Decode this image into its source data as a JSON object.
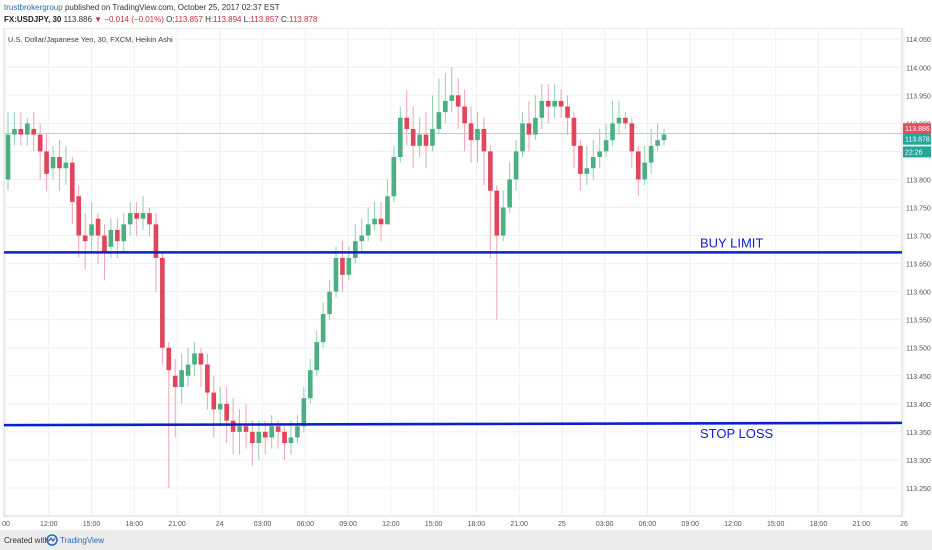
{
  "header": {
    "author": "trustbrokergroup",
    "published_text": "published on TradingView.com, October 25, 2017 02:37 EST",
    "symbol": "FX:USDJPY, 30",
    "last": "113.886",
    "change": "−0.014 (−0.01%)",
    "o_label": "O:",
    "o_value": "113.857",
    "h_label": "H:",
    "h_value": "113.894",
    "l_label": "L:",
    "l_value": "113.857",
    "c_label": "C:",
    "c_value": "113.878"
  },
  "chart_data": {
    "type": "candlestick",
    "title": "U.S. Dollar/Japanese Yen, 30, FXCM, Heikin Ashi",
    "ylim": [
      113.2,
      114.07
    ],
    "y_ticks": [
      "114.050",
      "114.000",
      "113.950",
      "113.900",
      "113.850",
      "113.800",
      "113.750",
      "113.700",
      "113.650",
      "113.600",
      "113.550",
      "113.500",
      "113.450",
      "113.400",
      "113.350",
      "113.300",
      "113.250"
    ],
    "x_ticks": [
      "00",
      "12:00",
      "15:00",
      "18:00",
      "21:00",
      "24",
      "03:00",
      "06:00",
      "09:00",
      "12:00",
      "15:00",
      "18:00",
      "21:00",
      "25",
      "03:00",
      "06:00",
      "09:00",
      "12:00",
      "15:00",
      "18:00",
      "21:00",
      "26"
    ],
    "price_labels": [
      {
        "value": 113.886,
        "text": "113.886",
        "color": "#e84a5f"
      },
      {
        "value": 113.878,
        "text": "113.878",
        "color": "#26a69a"
      },
      {
        "value": 113.866,
        "text": "22:26",
        "color": "#26a69a"
      }
    ],
    "current_price": 113.882,
    "horizontal_lines": [
      {
        "label": "BUY LIMIT",
        "start": 113.67,
        "end": 113.67,
        "color": "#0a1fcf"
      },
      {
        "label": "STOP LOSS",
        "start": 113.362,
        "end": 113.366,
        "color": "#0a1fcf"
      }
    ],
    "candles": [
      [
        113.8,
        113.88,
        113.92,
        113.78
      ],
      [
        113.88,
        113.89,
        113.92,
        113.86
      ],
      [
        113.89,
        113.88,
        113.92,
        113.86
      ],
      [
        113.88,
        113.9,
        113.91,
        113.86
      ],
      [
        113.89,
        113.88,
        113.92,
        113.85
      ],
      [
        113.88,
        113.85,
        113.9,
        113.8
      ],
      [
        113.85,
        113.81,
        113.88,
        113.78
      ],
      [
        113.82,
        113.84,
        113.86,
        113.8
      ],
      [
        113.84,
        113.82,
        113.87,
        113.78
      ],
      [
        113.82,
        113.83,
        113.86,
        113.79
      ],
      [
        113.83,
        113.76,
        113.84,
        113.72
      ],
      [
        113.77,
        113.7,
        113.79,
        113.66
      ],
      [
        113.7,
        113.69,
        113.74,
        113.64
      ],
      [
        113.7,
        113.72,
        113.76,
        113.67
      ],
      [
        113.73,
        113.7,
        113.74,
        113.65
      ],
      [
        113.7,
        113.67,
        113.72,
        113.62
      ],
      [
        113.68,
        113.71,
        113.73,
        113.66
      ],
      [
        113.71,
        113.69,
        113.73,
        113.66
      ],
      [
        113.69,
        113.72,
        113.74,
        113.67
      ],
      [
        113.72,
        113.74,
        113.76,
        113.7
      ],
      [
        113.74,
        113.73,
        113.76,
        113.7
      ],
      [
        113.73,
        113.74,
        113.77,
        113.71
      ],
      [
        113.74,
        113.72,
        113.75,
        113.7
      ],
      [
        113.72,
        113.66,
        113.74,
        113.6
      ],
      [
        113.66,
        113.5,
        113.67,
        113.47
      ],
      [
        113.5,
        113.46,
        113.51,
        113.25
      ],
      [
        113.45,
        113.43,
        113.48,
        113.34
      ],
      [
        113.43,
        113.46,
        113.49,
        113.4
      ],
      [
        113.45,
        113.47,
        113.5,
        113.43
      ],
      [
        113.47,
        113.49,
        113.51,
        113.45
      ],
      [
        113.49,
        113.47,
        113.5,
        113.43
      ],
      [
        113.47,
        113.42,
        113.49,
        113.39
      ],
      [
        113.42,
        113.39,
        113.45,
        113.34
      ],
      [
        113.39,
        113.4,
        113.43,
        113.36
      ],
      [
        113.4,
        113.37,
        113.43,
        113.33
      ],
      [
        113.37,
        113.35,
        113.41,
        113.31
      ],
      [
        113.35,
        113.36,
        113.39,
        113.31
      ],
      [
        113.36,
        113.35,
        113.4,
        113.32
      ],
      [
        113.35,
        113.33,
        113.37,
        113.29
      ],
      [
        113.33,
        113.35,
        113.37,
        113.3
      ],
      [
        113.35,
        113.34,
        113.37,
        113.31
      ],
      [
        113.34,
        113.36,
        113.38,
        113.32
      ],
      [
        113.36,
        113.35,
        113.37,
        113.32
      ],
      [
        113.35,
        113.33,
        113.36,
        113.3
      ],
      [
        113.33,
        113.34,
        113.37,
        113.31
      ],
      [
        113.34,
        113.36,
        113.38,
        113.33
      ],
      [
        113.36,
        113.41,
        113.43,
        113.35
      ],
      [
        113.41,
        113.46,
        113.48,
        113.4
      ],
      [
        113.46,
        113.51,
        113.53,
        113.45
      ],
      [
        113.51,
        113.56,
        113.58,
        113.5
      ],
      [
        113.56,
        113.6,
        113.62,
        113.55
      ],
      [
        113.6,
        113.66,
        113.68,
        113.59
      ],
      [
        113.66,
        113.63,
        113.69,
        113.6
      ],
      [
        113.63,
        113.66,
        113.68,
        113.62
      ],
      [
        113.66,
        113.69,
        113.72,
        113.65
      ],
      [
        113.69,
        113.7,
        113.73,
        113.67
      ],
      [
        113.7,
        113.72,
        113.75,
        113.69
      ],
      [
        113.72,
        113.73,
        113.76,
        113.71
      ],
      [
        113.73,
        113.72,
        113.76,
        113.69
      ],
      [
        113.72,
        113.77,
        113.8,
        113.72
      ],
      [
        113.77,
        113.84,
        113.86,
        113.76
      ],
      [
        113.84,
        113.91,
        113.93,
        113.83
      ],
      [
        113.91,
        113.89,
        113.96,
        113.86
      ],
      [
        113.89,
        113.86,
        113.93,
        113.82
      ],
      [
        113.86,
        113.88,
        113.91,
        113.84
      ],
      [
        113.88,
        113.86,
        113.92,
        113.82
      ],
      [
        113.86,
        113.89,
        113.95,
        113.85
      ],
      [
        113.89,
        113.92,
        113.98,
        113.88
      ],
      [
        113.92,
        113.94,
        113.99,
        113.9
      ],
      [
        113.94,
        113.95,
        114.0,
        113.92
      ],
      [
        113.95,
        113.93,
        113.98,
        113.89
      ],
      [
        113.93,
        113.9,
        113.96,
        113.85
      ],
      [
        113.9,
        113.87,
        113.93,
        113.83
      ],
      [
        113.87,
        113.89,
        113.92,
        113.83
      ],
      [
        113.89,
        113.85,
        113.91,
        113.79
      ],
      [
        113.85,
        113.78,
        113.86,
        113.66
      ],
      [
        113.78,
        113.7,
        113.79,
        113.55
      ],
      [
        113.7,
        113.75,
        113.78,
        113.69
      ],
      [
        113.75,
        113.8,
        113.83,
        113.74
      ],
      [
        113.8,
        113.85,
        113.87,
        113.78
      ],
      [
        113.85,
        113.9,
        113.92,
        113.84
      ],
      [
        113.9,
        113.88,
        113.94,
        113.85
      ],
      [
        113.88,
        113.91,
        113.95,
        113.87
      ],
      [
        113.91,
        113.94,
        113.97,
        113.89
      ],
      [
        113.94,
        113.93,
        113.97,
        113.9
      ],
      [
        113.93,
        113.94,
        113.97,
        113.91
      ],
      [
        113.94,
        113.93,
        113.96,
        113.91
      ],
      [
        113.93,
        113.91,
        113.95,
        113.88
      ],
      [
        113.91,
        113.86,
        113.92,
        113.82
      ],
      [
        113.86,
        113.81,
        113.87,
        113.78
      ],
      [
        113.81,
        113.82,
        113.86,
        113.79
      ],
      [
        113.82,
        113.84,
        113.87,
        113.8
      ],
      [
        113.84,
        113.85,
        113.89,
        113.82
      ],
      [
        113.85,
        113.87,
        113.9,
        113.84
      ],
      [
        113.87,
        113.9,
        113.94,
        113.86
      ],
      [
        113.9,
        113.91,
        113.94,
        113.88
      ],
      [
        113.91,
        113.9,
        113.92,
        113.89
      ],
      [
        113.9,
        113.85,
        113.91,
        113.82
      ],
      [
        113.85,
        113.8,
        113.86,
        113.77
      ],
      [
        113.8,
        113.83,
        113.86,
        113.79
      ],
      [
        113.83,
        113.86,
        113.89,
        113.81
      ],
      [
        113.86,
        113.87,
        113.9,
        113.85
      ],
      [
        113.87,
        113.88,
        113.89,
        113.86
      ]
    ]
  }
}
